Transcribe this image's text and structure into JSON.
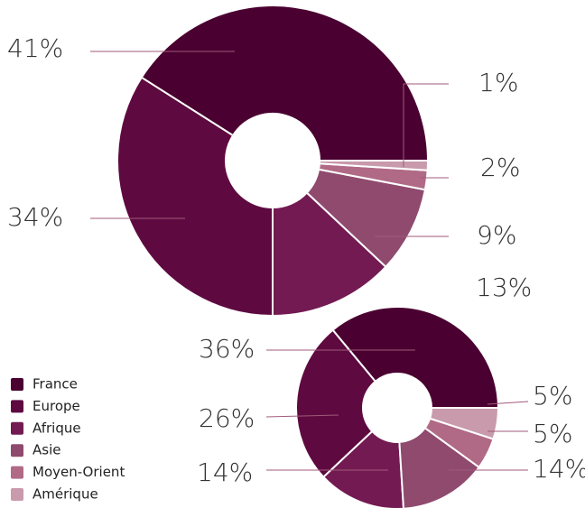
{
  "legend": {
    "labels": [
      "France",
      "Europe",
      "Afrique",
      "Asie",
      "Moyen-Orient",
      "Amérique"
    ],
    "colors": [
      "#4a0030",
      "#5e0a40",
      "#731a52",
      "#8f4a6e",
      "#b06a86",
      "#c89aab"
    ]
  },
  "chart_data": [
    {
      "type": "pie",
      "values": [
        41,
        34,
        13,
        9,
        2,
        1
      ],
      "value_labels": [
        "41%",
        "34%",
        "13%",
        "9%",
        "2%",
        "1%"
      ]
    },
    {
      "type": "pie",
      "values": [
        36,
        26,
        14,
        14,
        5,
        5
      ],
      "value_labels": [
        "36%",
        "26%",
        "14%",
        "14%",
        "5%",
        "5%"
      ]
    }
  ]
}
